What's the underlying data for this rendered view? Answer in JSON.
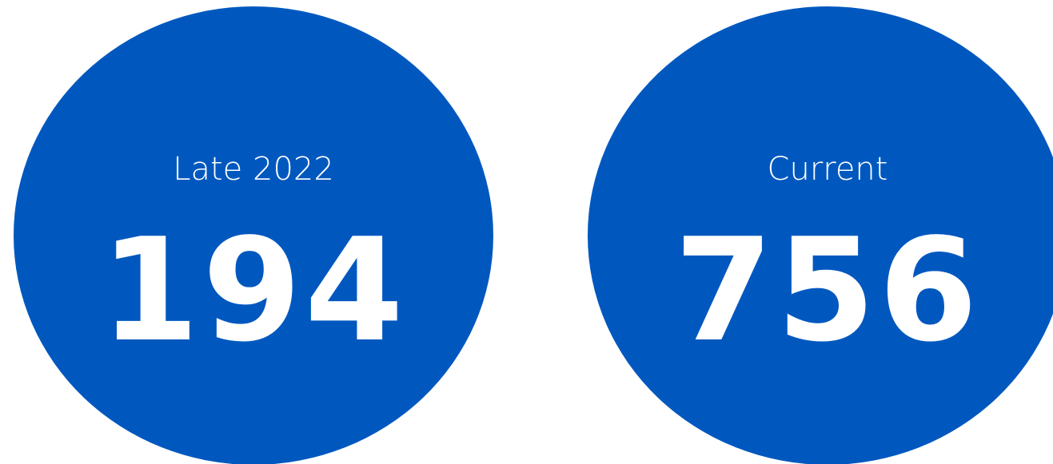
{
  "stats": [
    {
      "label": "Late 2022",
      "value": 194
    },
    {
      "label": "Current",
      "value": 756
    }
  ]
}
